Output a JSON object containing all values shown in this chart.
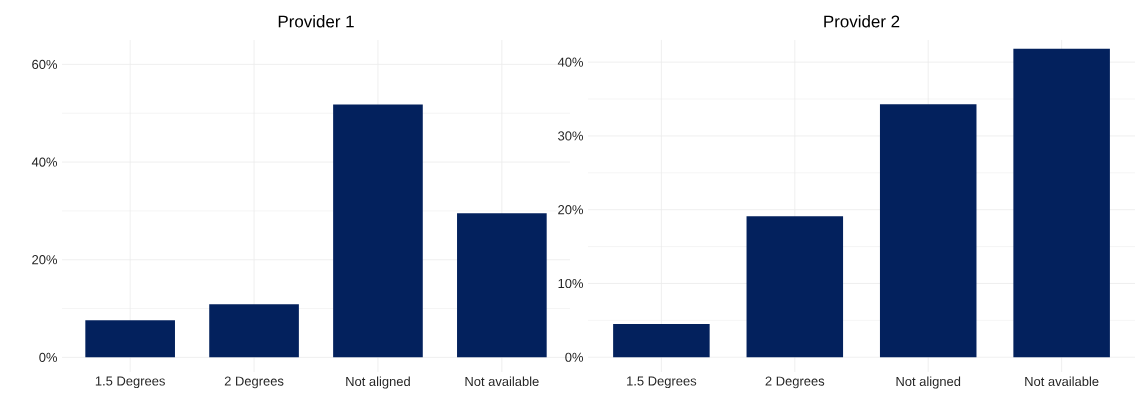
{
  "chart_data": [
    {
      "type": "bar",
      "title": "Provider 1",
      "categories": [
        "1.5 Degrees",
        "2 Degrees",
        "Not aligned",
        "Not available"
      ],
      "values": [
        7.6,
        10.9,
        51.8,
        29.5
      ],
      "color": "#03215d",
      "ylim": [
        -3,
        65
      ],
      "yticks": [
        {
          "value": 0,
          "label": "0%"
        },
        {
          "value": 20,
          "label": "20%"
        },
        {
          "value": 40,
          "label": "40%"
        },
        {
          "value": 60,
          "label": "60%"
        }
      ],
      "grid": true
    },
    {
      "type": "bar",
      "title": "Provider 2",
      "categories": [
        "1.5 Degrees",
        "2 Degrees",
        "Not aligned",
        "Not available"
      ],
      "values": [
        4.5,
        19.1,
        34.3,
        41.8
      ],
      "color": "#03215d",
      "ylim": [
        -2,
        43
      ],
      "yticks": [
        {
          "value": 0,
          "label": "0%"
        },
        {
          "value": 10,
          "label": "10%"
        },
        {
          "value": 20,
          "label": "20%"
        },
        {
          "value": 30,
          "label": "30%"
        },
        {
          "value": 40,
          "label": "40%"
        }
      ],
      "grid": true
    }
  ]
}
